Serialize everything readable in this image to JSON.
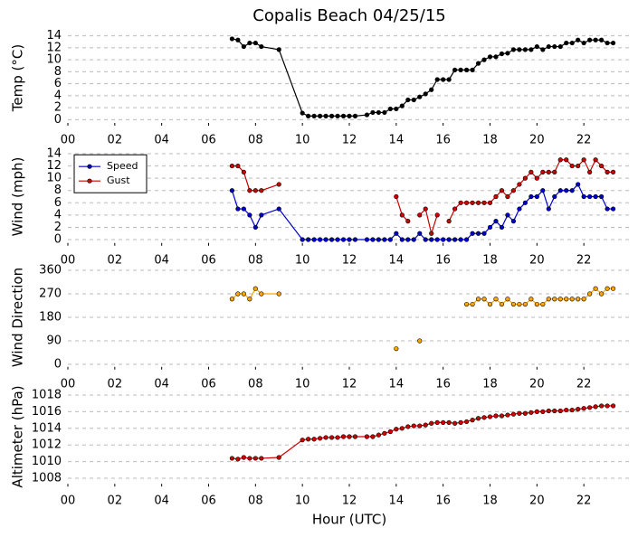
{
  "chart_data": [
    {
      "type": "line",
      "title": "Copalis Beach 04/25/15",
      "y_label": "Temp (°C)",
      "x": [
        7.0,
        7.25,
        7.5,
        7.75,
        8.0,
        8.25,
        9.0,
        10.0,
        10.25,
        10.5,
        10.75,
        11.0,
        11.25,
        11.5,
        11.75,
        12.0,
        12.25,
        12.75,
        13.0,
        13.25,
        13.5,
        13.75,
        14.0,
        14.25,
        14.5,
        14.75,
        15.0,
        15.25,
        15.5,
        15.75,
        16.0,
        16.25,
        16.5,
        16.75,
        17.0,
        17.25,
        17.5,
        17.75,
        18.0,
        18.25,
        18.5,
        18.75,
        19.0,
        19.25,
        19.5,
        19.75,
        20.0,
        20.25,
        20.5,
        20.75,
        21.0,
        21.25,
        21.5,
        21.75,
        22.0,
        22.25,
        22.5,
        22.75,
        23.0,
        23.25
      ],
      "series": [
        {
          "name": "Temp",
          "color": "#000000",
          "values": [
            13.5,
            13.3,
            12.2,
            12.8,
            12.8,
            12.2,
            11.7,
            1.1,
            0.6,
            0.6,
            0.6,
            0.6,
            0.6,
            0.6,
            0.6,
            0.6,
            0.6,
            0.8,
            1.2,
            1.2,
            1.2,
            1.8,
            1.8,
            2.3,
            3.3,
            3.3,
            3.8,
            4.3,
            5.0,
            6.7,
            6.7,
            6.7,
            8.3,
            8.3,
            8.3,
            8.3,
            9.4,
            10.0,
            10.5,
            10.5,
            11.0,
            11.1,
            11.7,
            11.7,
            11.7,
            11.7,
            12.2,
            11.7,
            12.2,
            12.2,
            12.2,
            12.8,
            12.8,
            13.3,
            12.8,
            13.3,
            13.3,
            13.3,
            12.8,
            12.8
          ]
        }
      ],
      "xlim": [
        0,
        24
      ],
      "xticks": [
        {
          "value": 0,
          "label": "00"
        },
        {
          "value": 2,
          "label": "02"
        },
        {
          "value": 4,
          "label": "04"
        },
        {
          "value": 6,
          "label": "06"
        },
        {
          "value": 8,
          "label": "08"
        },
        {
          "value": 10,
          "label": "10"
        },
        {
          "value": 12,
          "label": "12"
        },
        {
          "value": 14,
          "label": "14"
        },
        {
          "value": 16,
          "label": "16"
        },
        {
          "value": 18,
          "label": "18"
        },
        {
          "value": 20,
          "label": "20"
        },
        {
          "value": 22,
          "label": "22"
        }
      ],
      "ylim": [
        -1,
        15
      ],
      "yticks": [
        0,
        2,
        4,
        6,
        8,
        10,
        12,
        14
      ],
      "grid": true
    },
    {
      "type": "line",
      "y_label": "Wind (mph)",
      "legend": "upper left",
      "x": [
        7.0,
        7.25,
        7.5,
        7.75,
        8.0,
        8.25,
        9.0,
        10.0,
        10.25,
        10.5,
        10.75,
        11.0,
        11.25,
        11.5,
        11.75,
        12.0,
        12.25,
        12.75,
        13.0,
        13.25,
        13.5,
        13.75,
        14.0,
        14.25,
        14.5,
        14.75,
        15.0,
        15.25,
        15.5,
        15.75,
        16.0,
        16.25,
        16.5,
        16.75,
        17.0,
        17.25,
        17.5,
        17.75,
        18.0,
        18.25,
        18.5,
        18.75,
        19.0,
        19.25,
        19.5,
        19.75,
        20.0,
        20.25,
        20.5,
        20.75,
        21.0,
        21.25,
        21.5,
        21.75,
        22.0,
        22.25,
        22.5,
        22.75,
        23.0,
        23.25
      ],
      "series": [
        {
          "name": "Speed",
          "color": "#0000cc",
          "values": [
            8,
            5,
            5,
            4,
            2,
            4,
            5,
            0,
            0,
            0,
            0,
            0,
            0,
            0,
            0,
            0,
            0,
            0,
            0,
            0,
            0,
            0,
            1,
            0,
            0,
            0,
            1,
            0,
            0,
            0,
            0,
            0,
            0,
            0,
            0,
            1,
            1,
            1,
            2,
            3,
            2,
            4,
            3,
            5,
            6,
            7,
            7,
            8,
            5,
            7,
            8,
            8,
            8,
            9,
            7,
            7,
            7,
            7,
            5,
            5
          ]
        },
        {
          "name": "Gust",
          "color": "#cc0000",
          "values": [
            12,
            12,
            11,
            8,
            8,
            8,
            9,
            null,
            null,
            null,
            null,
            null,
            null,
            null,
            null,
            null,
            null,
            null,
            null,
            null,
            null,
            null,
            7,
            4,
            3,
            null,
            4,
            5,
            1,
            4,
            null,
            3,
            5,
            6,
            6,
            6,
            6,
            6,
            6,
            7,
            8,
            7,
            8,
            9,
            10,
            11,
            10,
            11,
            11,
            11,
            13,
            13,
            12,
            12,
            13,
            11,
            13,
            12,
            11,
            11
          ]
        }
      ],
      "xlim": [
        0,
        24
      ],
      "xticks": [
        {
          "value": 0,
          "label": "00"
        },
        {
          "value": 2,
          "label": "02"
        },
        {
          "value": 4,
          "label": "04"
        },
        {
          "value": 6,
          "label": "06"
        },
        {
          "value": 8,
          "label": "08"
        },
        {
          "value": 10,
          "label": "10"
        },
        {
          "value": 12,
          "label": "12"
        },
        {
          "value": 14,
          "label": "14"
        },
        {
          "value": 16,
          "label": "16"
        },
        {
          "value": 18,
          "label": "18"
        },
        {
          "value": 20,
          "label": "20"
        },
        {
          "value": 22,
          "label": "22"
        }
      ],
      "ylim": [
        -1,
        15
      ],
      "yticks": [
        0,
        2,
        4,
        6,
        8,
        10,
        12,
        14
      ],
      "grid": true
    },
    {
      "type": "line",
      "y_label": "Wind Direction",
      "x": [
        7.0,
        7.25,
        7.5,
        7.75,
        8.0,
        8.25,
        9.0,
        10.0,
        10.25,
        10.5,
        10.75,
        11.0,
        11.25,
        11.5,
        11.75,
        12.0,
        12.25,
        12.75,
        13.0,
        13.25,
        13.5,
        13.75,
        14.0,
        14.25,
        14.5,
        14.75,
        15.0,
        15.25,
        15.5,
        15.75,
        16.0,
        16.25,
        16.5,
        16.75,
        17.0,
        17.25,
        17.5,
        17.75,
        18.0,
        18.25,
        18.5,
        18.75,
        19.0,
        19.25,
        19.5,
        19.75,
        20.0,
        20.25,
        20.5,
        20.75,
        21.0,
        21.25,
        21.5,
        21.75,
        22.0,
        22.25,
        22.5,
        22.75,
        23.0,
        23.25
      ],
      "series": [
        {
          "name": "Direction",
          "color": "#ffa500",
          "values": [
            250,
            270,
            270,
            250,
            290,
            270,
            270,
            null,
            null,
            null,
            null,
            null,
            null,
            null,
            null,
            null,
            null,
            null,
            null,
            null,
            null,
            null,
            60,
            null,
            null,
            null,
            90,
            null,
            null,
            null,
            null,
            null,
            null,
            null,
            230,
            230,
            250,
            250,
            230,
            250,
            230,
            250,
            230,
            230,
            230,
            250,
            230,
            230,
            250,
            250,
            250,
            250,
            250,
            250,
            250,
            270,
            290,
            270,
            290,
            290
          ]
        }
      ],
      "xlim": [
        0,
        24
      ],
      "xticks": [
        {
          "value": 0,
          "label": "00"
        },
        {
          "value": 2,
          "label": "02"
        },
        {
          "value": 4,
          "label": "04"
        },
        {
          "value": 6,
          "label": "06"
        },
        {
          "value": 8,
          "label": "08"
        },
        {
          "value": 10,
          "label": "10"
        },
        {
          "value": 12,
          "label": "12"
        },
        {
          "value": 14,
          "label": "14"
        },
        {
          "value": 16,
          "label": "16"
        },
        {
          "value": 18,
          "label": "18"
        },
        {
          "value": 20,
          "label": "20"
        },
        {
          "value": 22,
          "label": "22"
        }
      ],
      "ylim": [
        -20,
        380
      ],
      "yticks": [
        0,
        90,
        180,
        270,
        360
      ],
      "grid": true
    },
    {
      "type": "line",
      "y_label": "Altimeter (hPa)",
      "x_label": "Hour (UTC)",
      "x": [
        7.0,
        7.25,
        7.5,
        7.75,
        8.0,
        8.25,
        9.0,
        10.0,
        10.25,
        10.5,
        10.75,
        11.0,
        11.25,
        11.5,
        11.75,
        12.0,
        12.25,
        12.75,
        13.0,
        13.25,
        13.5,
        13.75,
        14.0,
        14.25,
        14.5,
        14.75,
        15.0,
        15.25,
        15.5,
        15.75,
        16.0,
        16.25,
        16.5,
        16.75,
        17.0,
        17.25,
        17.5,
        17.75,
        18.0,
        18.25,
        18.5,
        18.75,
        19.0,
        19.25,
        19.5,
        19.75,
        20.0,
        20.25,
        20.5,
        20.75,
        21.0,
        21.25,
        21.5,
        21.75,
        22.0,
        22.25,
        22.5,
        22.75,
        23.0,
        23.25
      ],
      "series": [
        {
          "name": "Altimeter",
          "color": "#cc0000",
          "values": [
            1010.4,
            1010.3,
            1010.5,
            1010.4,
            1010.4,
            1010.4,
            1010.5,
            1012.6,
            1012.7,
            1012.7,
            1012.8,
            1012.9,
            1012.9,
            1012.9,
            1013.0,
            1013.0,
            1013.0,
            1013.0,
            1013.0,
            1013.2,
            1013.4,
            1013.6,
            1013.9,
            1014.0,
            1014.2,
            1014.3,
            1014.3,
            1014.4,
            1014.6,
            1014.7,
            1014.7,
            1014.7,
            1014.6,
            1014.7,
            1014.8,
            1015.0,
            1015.2,
            1015.3,
            1015.4,
            1015.5,
            1015.5,
            1015.6,
            1015.7,
            1015.8,
            1015.8,
            1015.9,
            1016.0,
            1016.0,
            1016.1,
            1016.1,
            1016.1,
            1016.2,
            1016.2,
            1016.3,
            1016.4,
            1016.5,
            1016.6,
            1016.7,
            1016.7,
            1016.7
          ]
        }
      ],
      "xlim": [
        0,
        24
      ],
      "xticks": [
        {
          "value": 0,
          "label": "00"
        },
        {
          "value": 2,
          "label": "02"
        },
        {
          "value": 4,
          "label": "04"
        },
        {
          "value": 6,
          "label": "06"
        },
        {
          "value": 8,
          "label": "08"
        },
        {
          "value": 10,
          "label": "10"
        },
        {
          "value": 12,
          "label": "12"
        },
        {
          "value": 14,
          "label": "14"
        },
        {
          "value": 16,
          "label": "16"
        },
        {
          "value": 18,
          "label": "18"
        },
        {
          "value": 20,
          "label": "20"
        },
        {
          "value": 22,
          "label": "22"
        }
      ],
      "ylim": [
        1007,
        1019
      ],
      "yticks": [
        1008,
        1010,
        1012,
        1014,
        1016,
        1018
      ],
      "grid": true
    }
  ]
}
